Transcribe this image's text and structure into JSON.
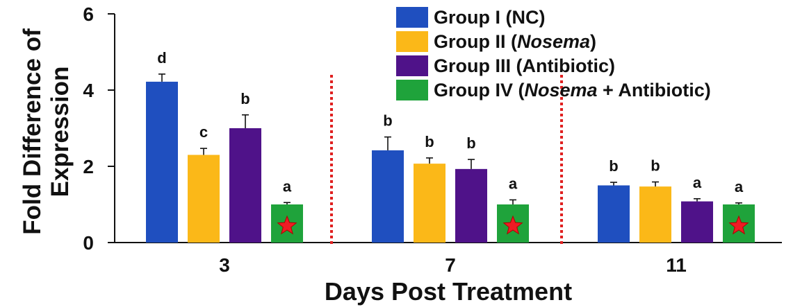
{
  "chart_data": {
    "type": "bar",
    "xlabel": "Days Post Treatment",
    "ylabel_lines": [
      "Fold Difference of",
      "Expression"
    ],
    "ylim": [
      0,
      6
    ],
    "yticks": [
      "0",
      "2",
      "4",
      "6"
    ],
    "grid": false,
    "legend_position": "top-right",
    "categories": [
      "3",
      "7",
      "11"
    ],
    "series": [
      {
        "name": "Group I (NC)",
        "legend": {
          "pre": "Group I (NC)",
          "em": "",
          "post": ""
        },
        "color": "#1f4fbf",
        "values": [
          4.22,
          2.42,
          1.5
        ],
        "errors": [
          0.2,
          0.35,
          0.08
        ],
        "letters": [
          "d",
          "b",
          "b"
        ],
        "marker": false
      },
      {
        "name": "Group II (Nosema)",
        "legend": {
          "pre": "Group II (",
          "em": "Nosema",
          "post": ")"
        },
        "color": "#fbb818",
        "values": [
          2.3,
          2.07,
          1.47
        ],
        "errors": [
          0.17,
          0.15,
          0.12
        ],
        "letters": [
          "c",
          "b",
          "b"
        ],
        "marker": false
      },
      {
        "name": "Group III (Antibiotic)",
        "legend": {
          "pre": "Group III (Antibiotic)",
          "em": "",
          "post": ""
        },
        "color": "#4f1289",
        "values": [
          3.0,
          1.93,
          1.08
        ],
        "errors": [
          0.35,
          0.25,
          0.07
        ],
        "letters": [
          "b",
          "b",
          "a"
        ],
        "marker": false
      },
      {
        "name": "Group IV (Nosema + Antibiotic)",
        "legend": {
          "pre": "Group IV (",
          "em": "Nosema",
          "post": " + Antibiotic)"
        },
        "color": "#1fa33b",
        "values": [
          1.0,
          1.0,
          1.0
        ],
        "errors": [
          0.05,
          0.12,
          0.04
        ],
        "letters": [
          "a",
          "a",
          "a"
        ],
        "marker": true
      }
    ],
    "marker_color": "#ee1c24"
  }
}
